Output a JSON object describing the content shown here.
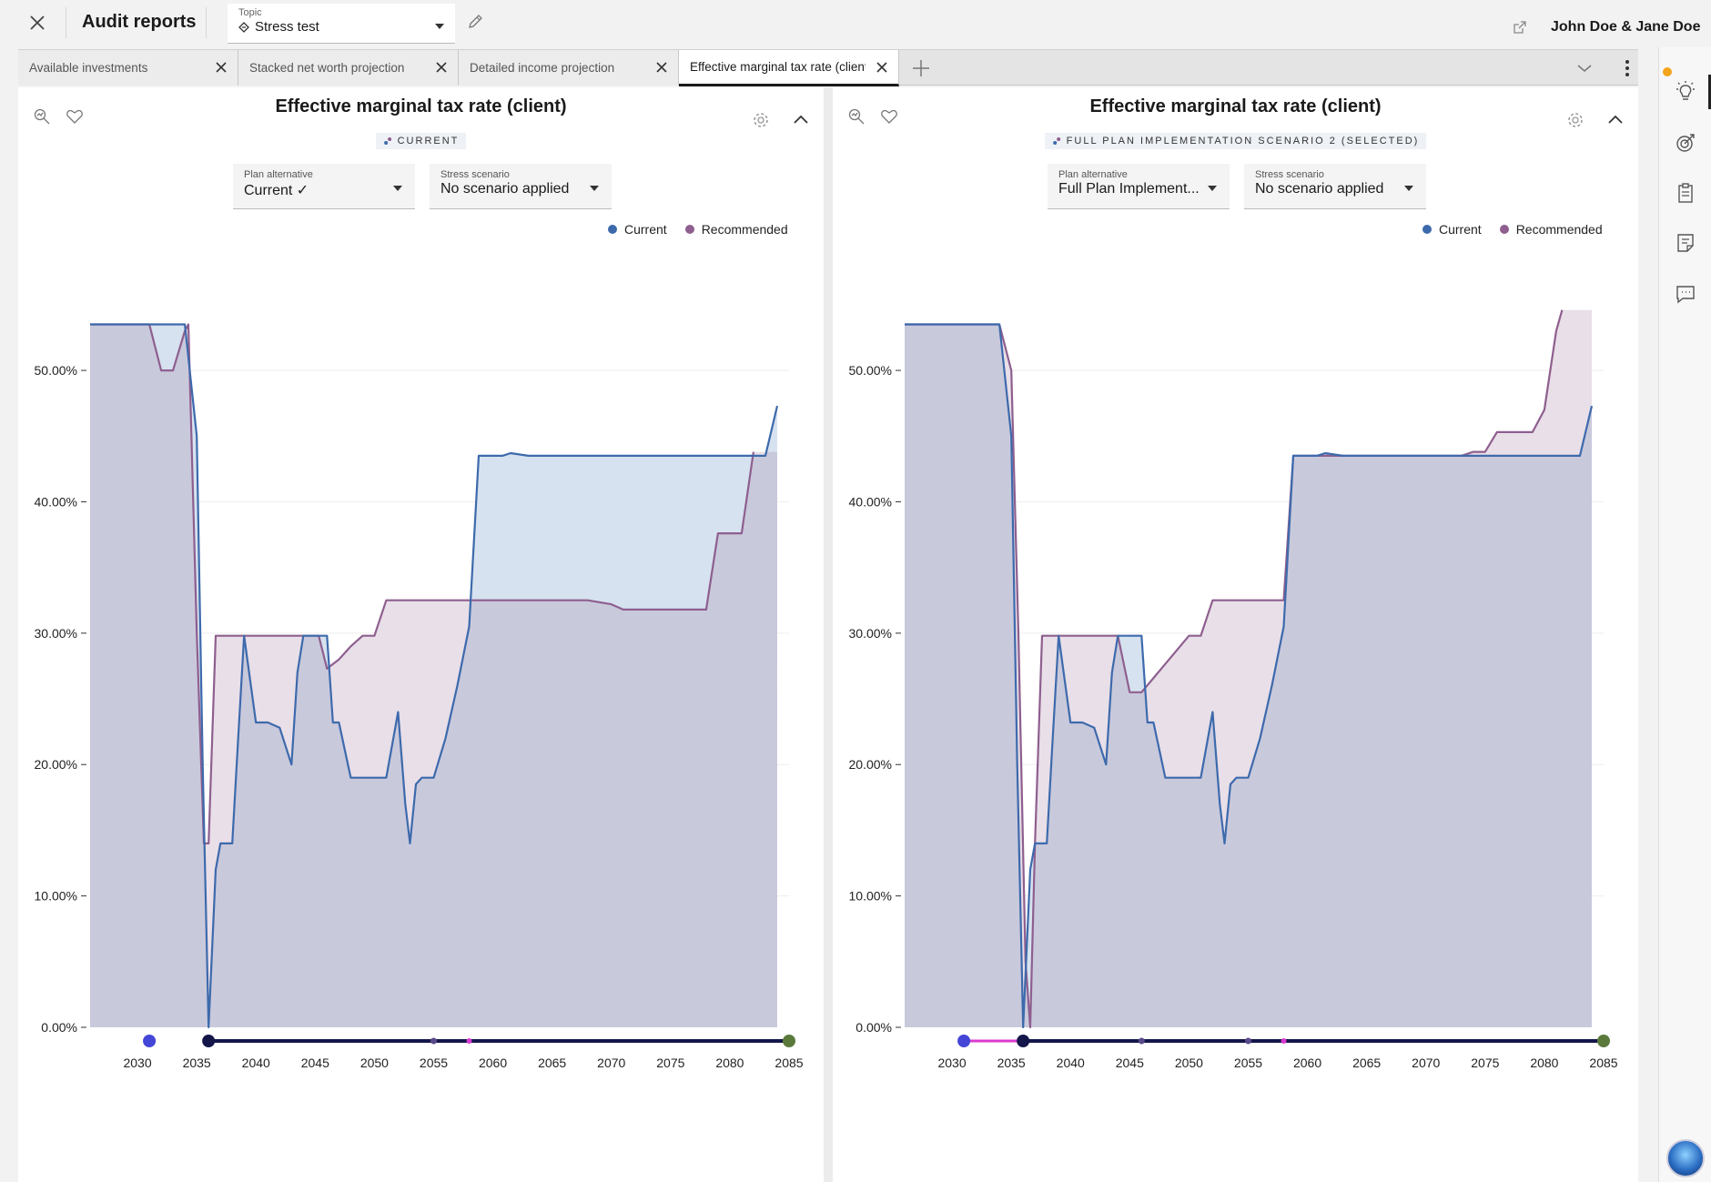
{
  "header": {
    "app_title": "Audit reports",
    "topic_label": "Topic",
    "topic_value": "Stress test",
    "user_name": "John Doe & Jane Doe"
  },
  "tabs": [
    {
      "label": "Available investments",
      "active": false
    },
    {
      "label": "Stacked net worth projection",
      "active": false
    },
    {
      "label": "Detailed income projection",
      "active": false
    },
    {
      "label": "Effective marginal tax rate (client)",
      "active": true
    }
  ],
  "colors": {
    "current": "#3d6aac",
    "recommended": "#8e5f8f",
    "current_fill": "#d6e2ef",
    "recommended_fill": "#e9dfe8",
    "overlap_fill": "#c9c9dc"
  },
  "icons": {
    "close": "close-icon",
    "topic": "diamond-icon",
    "edit": "pencil-icon",
    "export": "external-link-icon",
    "tab_add": "plus-icon",
    "tab_dropdown": "chevron-down-icon",
    "tab_more": "kebab-icon",
    "rail": [
      "lightbulb-icon",
      "target-icon",
      "clipboard-icon",
      "note-icon",
      "chat-icon"
    ]
  },
  "panels": [
    {
      "title": "Effective marginal tax rate (client)",
      "chip": "CURRENT",
      "plan_label": "Plan alternative",
      "plan_value": "Current ✓",
      "stress_label": "Stress scenario",
      "stress_value": "No scenario applied",
      "legend": [
        "Current",
        "Recommended"
      ],
      "chart_data": {
        "type": "area",
        "title": "Effective marginal tax rate (client)",
        "xlabel": "",
        "ylabel": "",
        "xlim": [
          2026,
          2085
        ],
        "ylim": [
          0,
          57
        ],
        "x_ticks": [
          "2030",
          "2035",
          "2040",
          "2045",
          "2050",
          "2055",
          "2060",
          "2065",
          "2070",
          "2075",
          "2080",
          "2085"
        ],
        "y_ticks": [
          0,
          10,
          20,
          30,
          40,
          50
        ],
        "y_tick_labels": [
          "0.00%",
          "10.00%",
          "20.00%",
          "30.00%",
          "40.00%",
          "50.00%"
        ],
        "grid": true,
        "legend_position": "top-right",
        "series": [
          {
            "name": "Current",
            "points": [
              [
                2026,
                53.5
              ],
              [
                2031,
                53.5
              ],
              [
                2034,
                53.5
              ],
              [
                2035,
                45
              ],
              [
                2035.5,
                20
              ],
              [
                2036,
                0
              ],
              [
                2036.6,
                12
              ],
              [
                2037,
                14
              ],
              [
                2038,
                14
              ],
              [
                2038.5,
                22
              ],
              [
                2039,
                29.8
              ],
              [
                2040,
                23.2
              ],
              [
                2041,
                23.2
              ],
              [
                2042,
                22.8
              ],
              [
                2043,
                20
              ],
              [
                2043.5,
                27
              ],
              [
                2044,
                29.8
              ],
              [
                2045,
                29.8
              ],
              [
                2046,
                29.8
              ],
              [
                2046.5,
                23.2
              ],
              [
                2047,
                23.2
              ],
              [
                2048,
                19
              ],
              [
                2051,
                19
              ],
              [
                2052,
                24
              ],
              [
                2052.6,
                17
              ],
              [
                2053,
                14
              ],
              [
                2053.5,
                18.5
              ],
              [
                2054,
                19
              ],
              [
                2055,
                19
              ],
              [
                2056,
                22
              ],
              [
                2057,
                26
              ],
              [
                2058,
                30.5
              ],
              [
                2058.8,
                43.5
              ],
              [
                2060.8,
                43.5
              ],
              [
                2061.5,
                43.7
              ],
              [
                2063,
                43.5
              ],
              [
                2083,
                43.5
              ],
              [
                2084,
                47.3
              ]
            ]
          },
          {
            "name": "Recommended",
            "points": [
              [
                2026,
                53.5
              ],
              [
                2031,
                53.5
              ],
              [
                2032,
                50
              ],
              [
                2033,
                50
              ],
              [
                2034,
                53
              ],
              [
                2034.3,
                53.5
              ],
              [
                2035,
                30
              ],
              [
                2035.6,
                14
              ],
              [
                2036,
                14
              ],
              [
                2036.6,
                29.8
              ],
              [
                2043,
                29.8
              ],
              [
                2045,
                29.8
              ],
              [
                2045.3,
                29.8
              ],
              [
                2046,
                27.3
              ],
              [
                2047,
                28
              ],
              [
                2048,
                29
              ],
              [
                2049,
                29.8
              ],
              [
                2050,
                29.8
              ],
              [
                2051,
                32.5
              ],
              [
                2060,
                32.5
              ],
              [
                2068,
                32.5
              ],
              [
                2070,
                32.2
              ],
              [
                2071,
                31.8
              ],
              [
                2075,
                31.8
              ],
              [
                2078,
                31.8
              ],
              [
                2079,
                37.6
              ],
              [
                2081,
                37.6
              ],
              [
                2082,
                43.8
              ]
            ]
          }
        ]
      }
    },
    {
      "title": "Effective marginal tax rate (client)",
      "chip": "FULL PLAN IMPLEMENTATION SCENARIO 2 (SELECTED)",
      "plan_label": "Plan alternative",
      "plan_value": "Full Plan Implement...",
      "stress_label": "Stress scenario",
      "stress_value": "No scenario applied",
      "legend": [
        "Current",
        "Recommended"
      ],
      "chart_data": {
        "type": "area",
        "title": "Effective marginal tax rate (client)",
        "xlabel": "",
        "ylabel": "",
        "xlim": [
          2026,
          2085
        ],
        "ylim": [
          0,
          57
        ],
        "x_ticks": [
          "2030",
          "2035",
          "2040",
          "2045",
          "2050",
          "2055",
          "2060",
          "2065",
          "2070",
          "2075",
          "2080",
          "2085"
        ],
        "y_ticks": [
          0,
          10,
          20,
          30,
          40,
          50
        ],
        "y_tick_labels": [
          "0.00%",
          "10.00%",
          "20.00%",
          "30.00%",
          "40.00%",
          "50.00%"
        ],
        "grid": true,
        "legend_position": "top-right",
        "series": [
          {
            "name": "Current",
            "points": [
              [
                2026,
                53.5
              ],
              [
                2034,
                53.5
              ],
              [
                2035,
                45
              ],
              [
                2035.5,
                20
              ],
              [
                2036,
                0
              ],
              [
                2036.6,
                12
              ],
              [
                2037,
                14
              ],
              [
                2038,
                14
              ],
              [
                2038.5,
                22
              ],
              [
                2039,
                29.8
              ],
              [
                2040,
                23.2
              ],
              [
                2041,
                23.2
              ],
              [
                2042,
                22.8
              ],
              [
                2043,
                20
              ],
              [
                2043.5,
                27
              ],
              [
                2044,
                29.8
              ],
              [
                2045,
                29.8
              ],
              [
                2046,
                29.8
              ],
              [
                2046.5,
                23.2
              ],
              [
                2047,
                23.2
              ],
              [
                2048,
                19
              ],
              [
                2051,
                19
              ],
              [
                2052,
                24
              ],
              [
                2052.6,
                17
              ],
              [
                2053,
                14
              ],
              [
                2053.5,
                18.5
              ],
              [
                2054,
                19
              ],
              [
                2055,
                19
              ],
              [
                2056,
                22
              ],
              [
                2057,
                26
              ],
              [
                2058,
                30.5
              ],
              [
                2058.8,
                43.5
              ],
              [
                2060.8,
                43.5
              ],
              [
                2061.5,
                43.7
              ],
              [
                2063,
                43.5
              ],
              [
                2083,
                43.5
              ],
              [
                2084,
                47.3
              ]
            ]
          },
          {
            "name": "Recommended",
            "points": [
              [
                2026,
                53.5
              ],
              [
                2034,
                53.5
              ],
              [
                2035,
                50
              ],
              [
                2035.6,
                30
              ],
              [
                2036.2,
                5
              ],
              [
                2036.6,
                0
              ],
              [
                2037,
                14
              ],
              [
                2037.6,
                29.8
              ],
              [
                2044,
                29.8
              ],
              [
                2045,
                25.5
              ],
              [
                2046,
                25.5
              ],
              [
                2050,
                29.8
              ],
              [
                2051,
                29.8
              ],
              [
                2052,
                32.5
              ],
              [
                2058,
                32.5
              ],
              [
                2058.8,
                43.5
              ],
              [
                2060,
                43.5
              ],
              [
                2068,
                43.5
              ],
              [
                2073,
                43.5
              ],
              [
                2074,
                43.8
              ],
              [
                2075,
                43.8
              ],
              [
                2076,
                45.3
              ],
              [
                2079,
                45.3
              ],
              [
                2080,
                47
              ],
              [
                2081,
                53
              ],
              [
                2081.5,
                54.6
              ]
            ]
          }
        ]
      }
    }
  ]
}
